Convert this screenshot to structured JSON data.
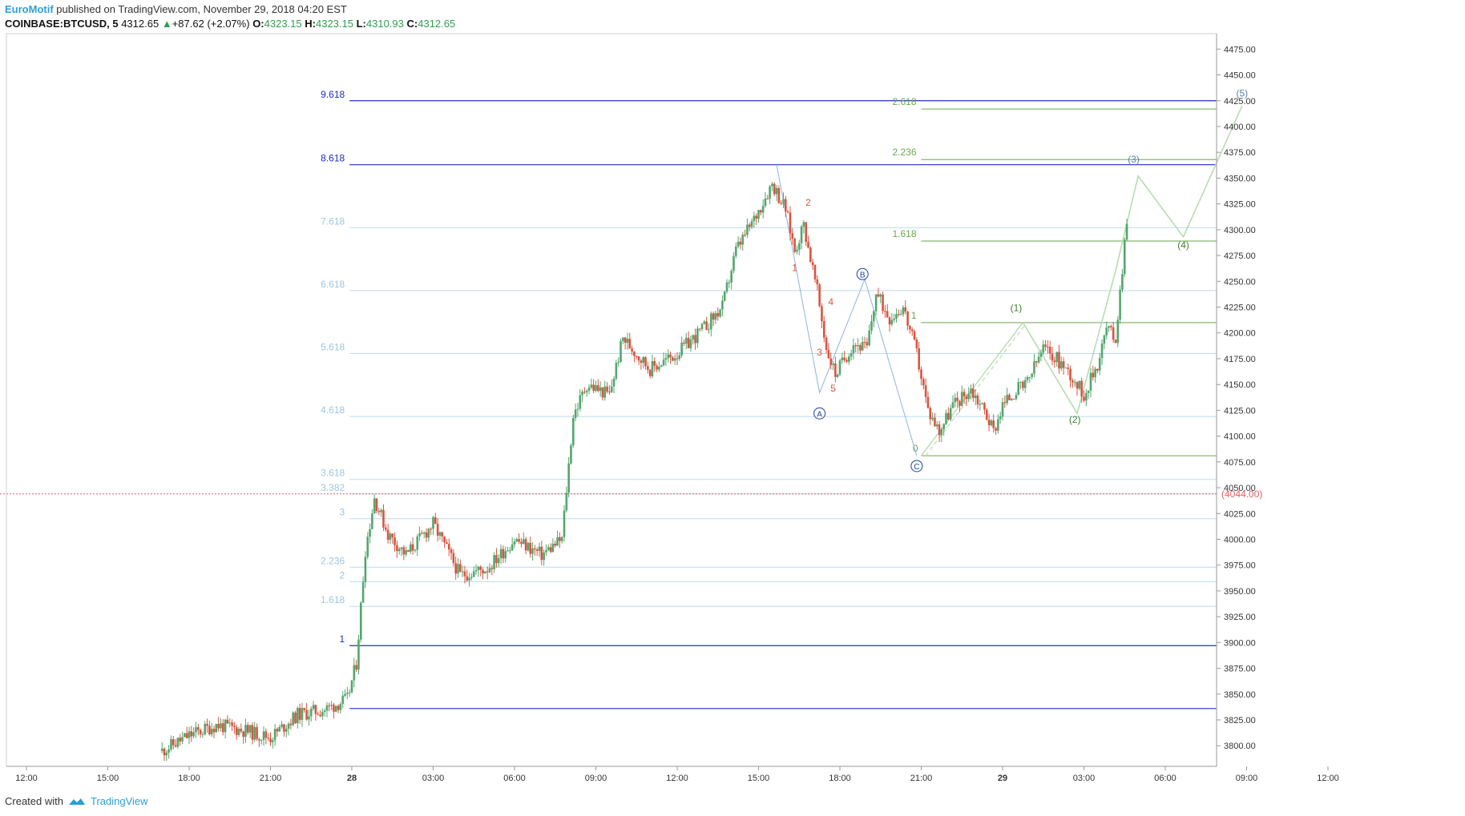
{
  "header": {
    "author": "EuroMotif",
    "published_text": "published on TradingView.com, November 29, 2018 04:20 EST",
    "symbol": "COINBASE:BTCUSD, 5",
    "last": "4312.65",
    "change_arrow": "▲",
    "change": "+87.62 (+2.07%)",
    "open_label": "O:",
    "open": "4323.15",
    "high_label": "H:",
    "high": "4323.15",
    "low_label": "L:",
    "low": "4310.93",
    "close_label": "C:",
    "close": "4312.65"
  },
  "footer": {
    "created_with": "Created with",
    "brand": "TradingView",
    "logo_icon": "tradingview-logo-icon"
  },
  "colors": {
    "up": "#53a66d",
    "down": "#d9543f",
    "fib_dark": "#1f2fbf",
    "fib_light": "#b9dbee",
    "fib_green": "#6aa84f",
    "wave_light_green": "#b7dcb0",
    "abc_blue": "#8fb2e0",
    "price_line": "#e06060",
    "axis_text": "#333333"
  },
  "chart_data": {
    "type": "candlestick",
    "y_axis": {
      "min": 3780,
      "max": 4490,
      "ticks": [
        "4475.00",
        "4450.00",
        "4425.00",
        "4400.00",
        "4375.00",
        "4350.00",
        "4325.00",
        "4300.00",
        "4275.00",
        "4250.00",
        "4225.00",
        "4200.00",
        "4175.00",
        "4150.00",
        "4125.00",
        "4100.00",
        "4075.00",
        "4050.00",
        "4025.00",
        "4000.00",
        "3975.00",
        "3950.00",
        "3925.00",
        "3900.00",
        "3875.00",
        "3850.00",
        "3825.00",
        "3800.00"
      ]
    },
    "x_axis": {
      "ticks": [
        "12:00",
        "15:00",
        "18:00",
        "21:00",
        "28",
        "03:00",
        "06:00",
        "09:00",
        "12:00",
        "15:00",
        "18:00",
        "21:00",
        "29",
        "03:00",
        "06:00",
        "09:00",
        "12:00"
      ]
    },
    "price_line": {
      "label": "(4044.00)",
      "value": 4044
    },
    "anchors": [
      [
        "27 17:00",
        3795
      ],
      [
        "27 18:00",
        3810
      ],
      [
        "27 19:00",
        3820
      ],
      [
        "27 20:00",
        3815
      ],
      [
        "27 21:00",
        3808
      ],
      [
        "27 22:00",
        3830
      ],
      [
        "27 23:00",
        3835
      ],
      [
        "27 23:50",
        3845
      ],
      [
        "28 00:10",
        3880
      ],
      [
        "28 00:30",
        3990
      ],
      [
        "28 00:50",
        4040
      ],
      [
        "28 01:20",
        4005
      ],
      [
        "28 02:00",
        3985
      ],
      [
        "28 03:00",
        4015
      ],
      [
        "28 04:00",
        3965
      ],
      [
        "28 05:00",
        3972
      ],
      [
        "28 06:00",
        4000
      ],
      [
        "28 07:00",
        3985
      ],
      [
        "28 07:45",
        4000
      ],
      [
        "28 08:10",
        4120
      ],
      [
        "28 08:40",
        4150
      ],
      [
        "28 09:30",
        4140
      ],
      [
        "28 10:00",
        4195
      ],
      [
        "28 11:00",
        4165
      ],
      [
        "28 12:00",
        4180
      ],
      [
        "28 13:00",
        4205
      ],
      [
        "28 13:40",
        4225
      ],
      [
        "28 14:10",
        4280
      ],
      [
        "28 14:50",
        4310
      ],
      [
        "28 15:30",
        4345
      ],
      [
        "28 16:00",
        4320
      ],
      [
        "28 16:20",
        4280
      ],
      [
        "28 16:40",
        4305
      ],
      [
        "28 17:10",
        4240
      ],
      [
        "28 17:30",
        4185
      ],
      [
        "28 17:50",
        4160
      ],
      [
        "28 18:30",
        4190
      ],
      [
        "28 19:00",
        4185
      ],
      [
        "28 19:20",
        4238
      ],
      [
        "28 19:50",
        4215
      ],
      [
        "28 20:20",
        4225
      ],
      [
        "28 20:50",
        4180
      ],
      [
        "28 21:15",
        4125
      ],
      [
        "28 21:40",
        4105
      ],
      [
        "28 22:10",
        4130
      ],
      [
        "28 22:50",
        4145
      ],
      [
        "28 23:20",
        4125
      ],
      [
        "28 23:40",
        4105
      ],
      [
        "29 00:00",
        4130
      ],
      [
        "29 00:30",
        4145
      ],
      [
        "29 00:50",
        4148
      ],
      [
        "29 01:30",
        4185
      ],
      [
        "29 02:00",
        4175
      ],
      [
        "29 02:30",
        4160
      ],
      [
        "29 03:00",
        4140
      ],
      [
        "29 03:30",
        4170
      ],
      [
        "29 03:50",
        4205
      ],
      [
        "29 04:10",
        4195
      ],
      [
        "29 04:20",
        4240
      ],
      [
        "29 04:35",
        4312
      ]
    ],
    "fib_levels": [
      {
        "label": "9.618",
        "value": 4425,
        "style": "dark"
      },
      {
        "label": "8.618",
        "value": 4363,
        "style": "dark"
      },
      {
        "label": "7.618",
        "value": 4302,
        "style": "light"
      },
      {
        "label": "6.618",
        "value": 4241,
        "style": "light"
      },
      {
        "label": "5.618",
        "value": 4180,
        "style": "light"
      },
      {
        "label": "4.618",
        "value": 4119,
        "style": "light"
      },
      {
        "label": "3.618",
        "value": 4058,
        "style": "light"
      },
      {
        "label": "3.382",
        "value": 4044,
        "style": "light"
      },
      {
        "label": "3",
        "value": 4020,
        "style": "light"
      },
      {
        "label": "2.236",
        "value": 3973,
        "style": "light"
      },
      {
        "label": "2",
        "value": 3959,
        "style": "light"
      },
      {
        "label": "1.618",
        "value": 3935,
        "style": "light"
      },
      {
        "label": "1",
        "value": 3897,
        "style": "dark"
      },
      {
        "label": "",
        "value": 3836,
        "style": "dark"
      }
    ],
    "green_fib_levels": [
      {
        "label": "2.618",
        "value": 4417
      },
      {
        "label": "2.236",
        "value": 4368
      },
      {
        "label": "1.618",
        "value": 4289
      },
      {
        "label": "1",
        "value": 4210
      },
      {
        "label": "0",
        "value": 4081
      }
    ],
    "wave_labels_red": [
      {
        "label": "1",
        "t": "28 16:20",
        "v": 4260
      },
      {
        "label": "2",
        "t": "28 16:50",
        "v": 4323
      },
      {
        "label": "3",
        "t": "28 17:15",
        "v": 4178
      },
      {
        "label": "4",
        "t": "28 17:40",
        "v": 4227
      },
      {
        "label": "5",
        "t": "28 17:45",
        "v": 4143
      }
    ],
    "abc_labels": [
      {
        "label": "A",
        "t": "28 17:15",
        "v": 4122
      },
      {
        "label": "B",
        "t": "28 18:50",
        "v": 4257
      },
      {
        "label": "C",
        "t": "28 20:50",
        "v": 4071
      }
    ],
    "projection_labels": [
      {
        "label": "(1)",
        "t": "29 00:30",
        "v": 4221
      },
      {
        "label": "(2)",
        "t": "29 02:40",
        "v": 4113
      },
      {
        "label": "(3)",
        "t": "29 04:50",
        "v": 4365
      },
      {
        "label": "(4)",
        "t": "29 06:40",
        "v": 4282
      },
      {
        "label": "(5)",
        "t": "29 08:50",
        "v": 4429
      }
    ]
  }
}
